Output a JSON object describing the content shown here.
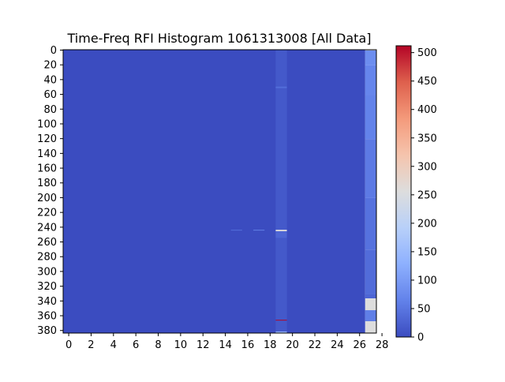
{
  "chart_data": {
    "type": "heatmap",
    "title": "Time-Freq RFI Histogram 1061313008 [All Data]",
    "xlabel": "",
    "ylabel": "",
    "xlim": [
      -0.5,
      27.5
    ],
    "ylim": [
      383.5,
      -0.5
    ],
    "x_ticks": [
      "0",
      "2",
      "4",
      "6",
      "8",
      "10",
      "12",
      "14",
      "16",
      "18",
      "20",
      "22",
      "24",
      "26",
      "28"
    ],
    "x_tick_values": [
      0,
      2,
      4,
      6,
      8,
      10,
      12,
      14,
      16,
      18,
      20,
      22,
      24,
      26,
      28
    ],
    "y_ticks": [
      "0",
      "20",
      "40",
      "60",
      "80",
      "100",
      "120",
      "140",
      "160",
      "180",
      "200",
      "220",
      "240",
      "260",
      "280",
      "300",
      "320",
      "340",
      "360",
      "380"
    ],
    "y_tick_values": [
      0,
      20,
      40,
      60,
      80,
      100,
      120,
      140,
      160,
      180,
      200,
      220,
      240,
      260,
      280,
      300,
      320,
      340,
      360,
      380
    ],
    "colormap": "coolwarm",
    "color_min": 0,
    "color_max": 512,
    "colorbar_ticks": [
      "0",
      "50",
      "100",
      "150",
      "200",
      "250",
      "300",
      "350",
      "400",
      "450",
      "500"
    ],
    "colorbar_tick_values": [
      0,
      50,
      100,
      150,
      200,
      250,
      300,
      350,
      400,
      450,
      500
    ],
    "n_columns": 28,
    "n_rows": 384,
    "background_value": 0,
    "cells": [
      {
        "x": 19,
        "y_from": 0,
        "y_to": 383,
        "value": 15
      },
      {
        "x": 19,
        "y_from": 50,
        "y_to": 51,
        "value": 40
      },
      {
        "x": 19,
        "y_from": 244,
        "y_to": 245,
        "value": 260
      },
      {
        "x": 19,
        "y_from": 246,
        "y_to": 254,
        "value": 30
      },
      {
        "x": 19,
        "y_from": 366,
        "y_to": 366,
        "value": 512
      },
      {
        "x": 19,
        "y_from": 382,
        "y_to": 383,
        "value": 150
      },
      {
        "x": 15,
        "y_from": 244,
        "y_to": 244,
        "value": 40
      },
      {
        "x": 17,
        "y_from": 244,
        "y_to": 244,
        "value": 60
      },
      {
        "x": 27,
        "y_from": 0,
        "y_to": 0,
        "value": 256
      },
      {
        "x": 27,
        "y_from": 1,
        "y_to": 20,
        "value": 80
      },
      {
        "x": 27,
        "y_from": 21,
        "y_to": 60,
        "value": 70
      },
      {
        "x": 27,
        "y_from": 61,
        "y_to": 120,
        "value": 65
      },
      {
        "x": 27,
        "y_from": 121,
        "y_to": 200,
        "value": 55
      },
      {
        "x": 27,
        "y_from": 201,
        "y_to": 270,
        "value": 45
      },
      {
        "x": 27,
        "y_from": 271,
        "y_to": 330,
        "value": 38
      },
      {
        "x": 27,
        "y_from": 331,
        "y_to": 336,
        "value": 30
      },
      {
        "x": 27,
        "y_from": 337,
        "y_to": 352,
        "value": 256
      },
      {
        "x": 27,
        "y_from": 353,
        "y_to": 367,
        "value": 60
      },
      {
        "x": 27,
        "y_from": 368,
        "y_to": 383,
        "value": 256
      }
    ]
  }
}
